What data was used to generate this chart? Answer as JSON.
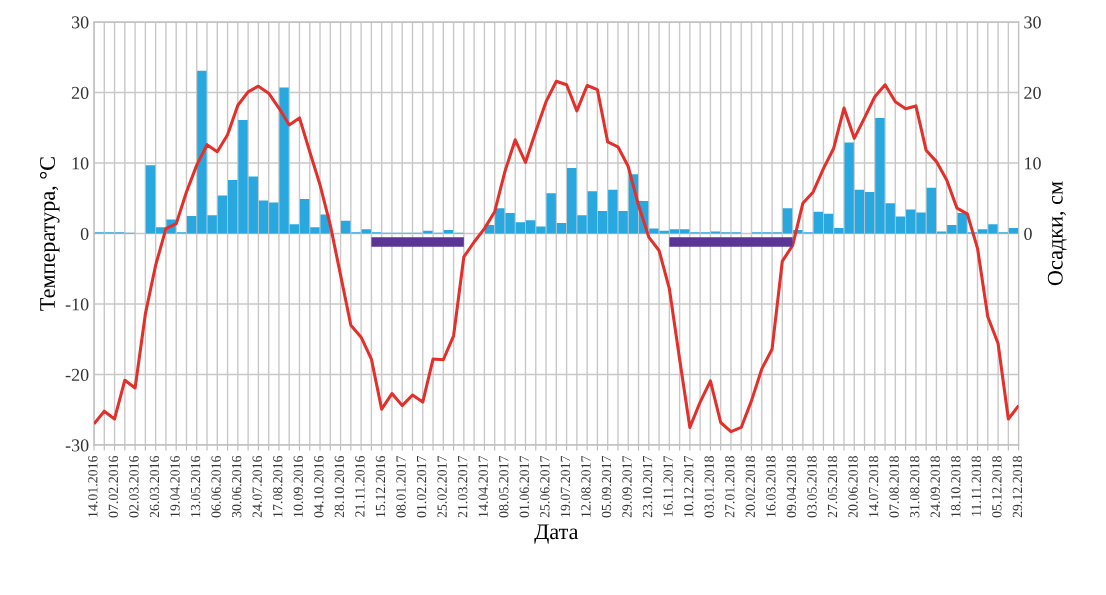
{
  "chart_data": {
    "type": "line",
    "xlabel": "Дата",
    "ylabel": "Температура, °C",
    "y2label": "Осадки, см",
    "categories": [
      "14.01.2016",
      null,
      "07.02.2016",
      null,
      "02.03.2016",
      null,
      "26.03.2016",
      null,
      "19.04.2016",
      null,
      "13.05.2016",
      null,
      "06.06.2016",
      null,
      "30.06.2016",
      null,
      "24.07.2016",
      null,
      "17.08.2016",
      null,
      "10.09.2016",
      null,
      "04.10.2016",
      null,
      "28.10.2016",
      null,
      "21.11.2016",
      null,
      "15.12.2016",
      null,
      "08.01.2017",
      null,
      "01.02.2017",
      null,
      "25.02.2017",
      null,
      "21.03.2017",
      null,
      "14.04.2017",
      null,
      "08.05.2017",
      null,
      "01.06.2017",
      null,
      "25.06.2017",
      null,
      "19.07.2017",
      null,
      "12.08.2017",
      null,
      "05.09.2017",
      null,
      "29.09.2017",
      null,
      "23.10.2017",
      null,
      "16.11.2017",
      null,
      "10.12.2017",
      null,
      "03.01.2018",
      null,
      "27.01.2018",
      null,
      "20.02.2018",
      null,
      "16.03.2018",
      null,
      "09.04.2018",
      null,
      "03.05.2018",
      null,
      "27.05.2018",
      null,
      "20.06.2018",
      null,
      "14.07.2018",
      null,
      "07.08.2018",
      null,
      "31.08.2018",
      null,
      "24.09.2018",
      null,
      "18.10.2018",
      null,
      "11.11.2018",
      null,
      "05.12.2018",
      null,
      "29.12.2018"
    ],
    "series": [
      {
        "type": "bar",
        "axis": "y2",
        "color": "#29a8e0",
        "values": [
          0.2,
          0.2,
          0.2,
          0.1,
          0,
          9.7,
          0.9,
          2.0,
          0.2,
          2.5,
          23.1,
          2.6,
          5.4,
          7.6,
          16.1,
          8.1,
          4.7,
          4.4,
          20.7,
          1.3,
          4.9,
          0.9,
          2.7,
          0,
          1.8,
          0.2,
          0.6,
          0.2,
          0.1,
          0.1,
          0.1,
          0.1,
          0.4,
          0.1,
          0.5,
          0.1,
          0,
          0,
          1.2,
          3.6,
          2.9,
          1.6,
          1.9,
          1.0,
          5.7,
          1.5,
          9.3,
          2.6,
          6.0,
          3.2,
          6.2,
          3.2,
          8.4,
          4.6,
          0.7,
          0.4,
          0.6,
          0.6,
          0.2,
          0.2,
          0.3,
          0.2,
          0.2,
          0,
          0.2,
          0.2,
          0.2,
          3.6,
          0.5,
          0.2,
          3.1,
          2.8,
          0.8,
          12.9,
          6.2,
          5.9,
          16.4,
          4.3,
          2.4,
          3.4,
          3.0,
          6.5,
          0.3,
          1.2,
          2.9,
          0.2,
          0.6,
          1.3,
          0.2,
          0.8,
          null
        ]
      },
      {
        "axis": "y",
        "color": "#e3302b",
        "values": [
          -27.0,
          -25.2,
          -26.3,
          -20.8,
          -21.9,
          -11.4,
          -4.5,
          0.7,
          1.4,
          5.9,
          9.7,
          12.6,
          11.6,
          14.0,
          18.2,
          20.1,
          20.9,
          19.9,
          17.8,
          15.4,
          16.4,
          11.6,
          6.9,
          1.2,
          -5.9,
          -13.0,
          -14.7,
          -17.8,
          -24.9,
          -22.7,
          -24.4,
          -22.9,
          -23.9,
          -17.8,
          -17.9,
          -14.5,
          -3.3,
          -1.2,
          0.7,
          3.1,
          8.8,
          13.3,
          10.1,
          14.5,
          18.7,
          21.6,
          21.1,
          17.4,
          21.0,
          20.4,
          13.0,
          12.3,
          9.5,
          4.0,
          -0.5,
          -2.4,
          -7.8,
          -17.8,
          -27.5,
          -23.9,
          -20.9,
          -26.8,
          -28.1,
          -27.5,
          -23.7,
          -19.2,
          -16.4,
          -3.9,
          -1.7,
          4.3,
          5.9,
          9.2,
          12.1,
          17.8,
          13.5,
          16.4,
          19.4,
          21.1,
          18.7,
          17.7,
          18.1,
          11.8,
          10.2,
          7.6,
          3.6,
          2.8,
          -2.1,
          -11.8,
          -15.6,
          -26.3,
          -24.4
        ]
      },
      {
        "axis": "y",
        "color": "#5b3596",
        "values": [
          null,
          null,
          null,
          null,
          null,
          null,
          null,
          null,
          null,
          null,
          null,
          null,
          null,
          null,
          null,
          null,
          null,
          null,
          null,
          null,
          null,
          null,
          null,
          null,
          null,
          null,
          null,
          -1.2,
          -1.2,
          -1.2,
          -1.2,
          -1.2,
          -1.2,
          -1.2,
          -1.2,
          -1.2,
          -1.2,
          null,
          null,
          null,
          null,
          null,
          null,
          null,
          null,
          null,
          null,
          null,
          null,
          null,
          null,
          null,
          null,
          null,
          null,
          null,
          -1.2,
          -1.2,
          -1.2,
          -1.2,
          -1.2,
          -1.2,
          -1.2,
          -1.2,
          -1.2,
          -1.2,
          -1.2,
          -1.2,
          -1.2,
          null,
          null,
          null,
          null,
          null,
          null,
          null,
          null,
          null,
          null,
          null,
          null,
          null,
          null,
          null,
          null,
          null,
          null,
          null,
          null,
          null,
          null
        ]
      }
    ],
    "ylim": [
      -30,
      30
    ],
    "yticks": [
      -30,
      -20,
      -10,
      0,
      10,
      20,
      30
    ],
    "y2lim": [
      -30,
      30
    ],
    "y2ticks": [
      0,
      10,
      20,
      30
    ],
    "grid": true,
    "marker": "none",
    "line_style": "solid"
  }
}
